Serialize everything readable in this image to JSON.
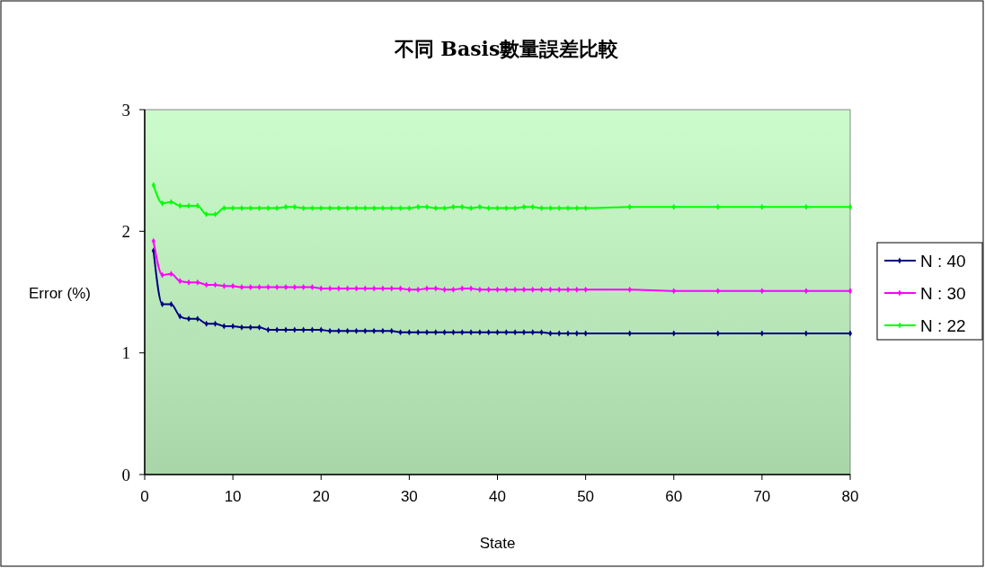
{
  "chart_data": {
    "type": "line",
    "title": "不同 Basis數量誤差比較",
    "xlabel": "State",
    "ylabel": "Error (%)",
    "x": [
      1,
      2,
      3,
      4,
      5,
      6,
      7,
      8,
      9,
      10,
      11,
      12,
      13,
      14,
      15,
      16,
      17,
      18,
      19,
      20,
      21,
      22,
      23,
      24,
      25,
      26,
      27,
      28,
      29,
      30,
      31,
      32,
      33,
      34,
      35,
      36,
      37,
      38,
      39,
      40,
      41,
      42,
      43,
      44,
      45,
      46,
      47,
      48,
      49,
      50,
      55,
      60,
      65,
      70,
      75,
      80
    ],
    "series": [
      {
        "name": "N : 40",
        "color": "#000080",
        "values": [
          1.84,
          1.4,
          1.4,
          1.3,
          1.28,
          1.28,
          1.24,
          1.24,
          1.22,
          1.22,
          1.21,
          1.21,
          1.21,
          1.19,
          1.19,
          1.19,
          1.19,
          1.19,
          1.19,
          1.19,
          1.18,
          1.18,
          1.18,
          1.18,
          1.18,
          1.18,
          1.18,
          1.18,
          1.17,
          1.17,
          1.17,
          1.17,
          1.17,
          1.17,
          1.17,
          1.17,
          1.17,
          1.17,
          1.17,
          1.17,
          1.17,
          1.17,
          1.17,
          1.17,
          1.17,
          1.16,
          1.16,
          1.16,
          1.16,
          1.16,
          1.16,
          1.16,
          1.16,
          1.16,
          1.16,
          1.16
        ]
      },
      {
        "name": "N : 30",
        "color": "#ff00ff",
        "values": [
          1.92,
          1.64,
          1.65,
          1.59,
          1.58,
          1.58,
          1.56,
          1.56,
          1.55,
          1.55,
          1.54,
          1.54,
          1.54,
          1.54,
          1.54,
          1.54,
          1.54,
          1.54,
          1.54,
          1.53,
          1.53,
          1.53,
          1.53,
          1.53,
          1.53,
          1.53,
          1.53,
          1.53,
          1.53,
          1.52,
          1.52,
          1.53,
          1.53,
          1.52,
          1.52,
          1.53,
          1.53,
          1.52,
          1.52,
          1.52,
          1.52,
          1.52,
          1.52,
          1.52,
          1.52,
          1.52,
          1.52,
          1.52,
          1.52,
          1.52,
          1.52,
          1.51,
          1.51,
          1.51,
          1.51,
          1.51
        ]
      },
      {
        "name": "N : 22",
        "color": "#00ff00",
        "values": [
          2.38,
          2.23,
          2.24,
          2.21,
          2.21,
          2.21,
          2.14,
          2.14,
          2.19,
          2.19,
          2.19,
          2.19,
          2.19,
          2.19,
          2.19,
          2.2,
          2.2,
          2.19,
          2.19,
          2.19,
          2.19,
          2.19,
          2.19,
          2.19,
          2.19,
          2.19,
          2.19,
          2.19,
          2.19,
          2.19,
          2.2,
          2.2,
          2.19,
          2.19,
          2.2,
          2.2,
          2.19,
          2.2,
          2.19,
          2.19,
          2.19,
          2.19,
          2.2,
          2.2,
          2.19,
          2.19,
          2.19,
          2.19,
          2.19,
          2.19,
          2.2,
          2.2,
          2.2,
          2.2,
          2.2,
          2.2
        ]
      }
    ],
    "xlim": [
      0,
      80
    ],
    "xticks": [
      0,
      10,
      20,
      30,
      40,
      50,
      60,
      70,
      80
    ],
    "ylim": [
      0,
      3
    ],
    "yticks": [
      0,
      1,
      2,
      3
    ],
    "legend": "right",
    "marker": "diamond",
    "line_style": "solid",
    "grid": false
  }
}
